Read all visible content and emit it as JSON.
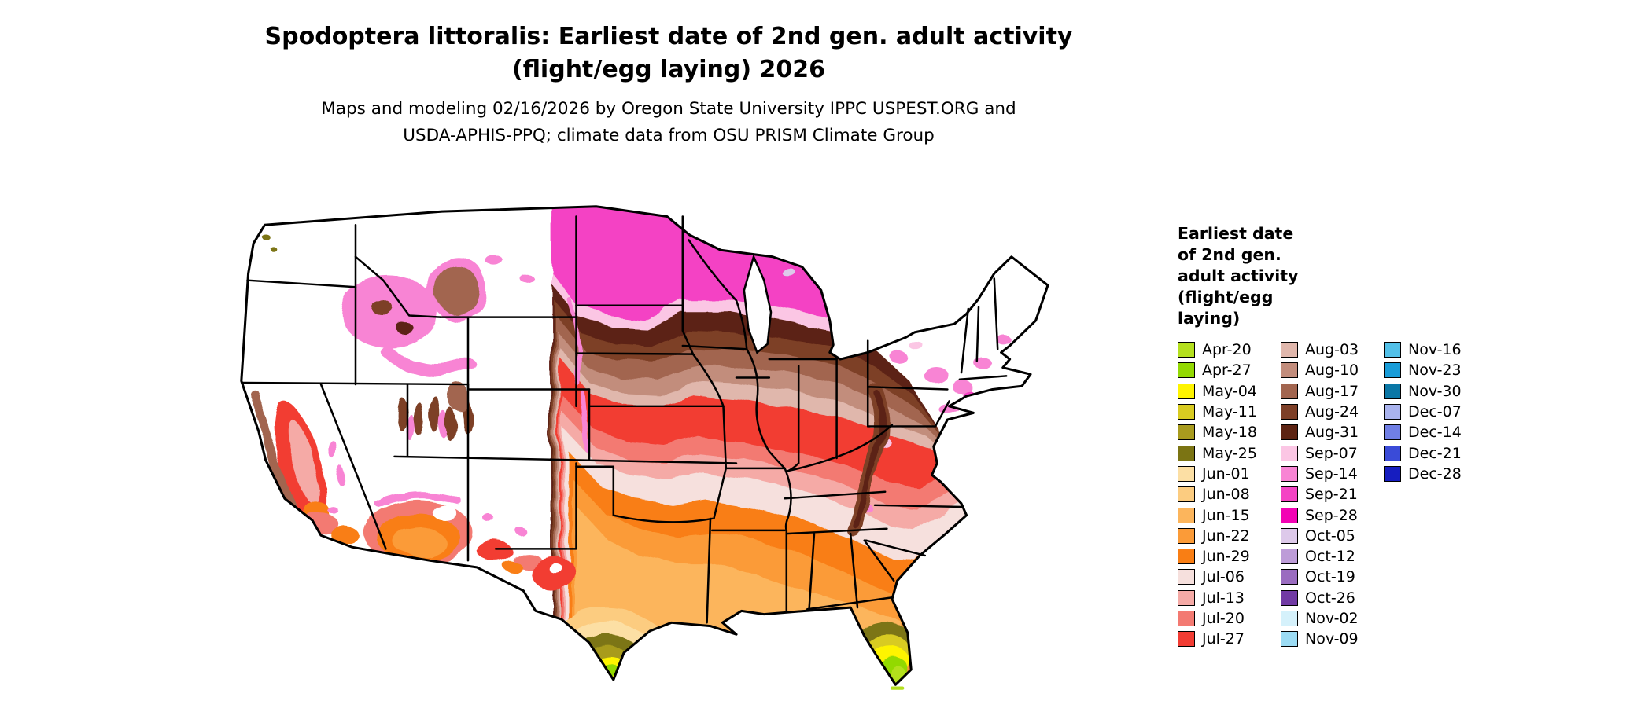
{
  "title": {
    "line1": "Spodoptera littoralis: Earliest date of 2nd gen. adult activity",
    "line2": "(flight/egg laying) 2026"
  },
  "subtitle": {
    "line1": "Maps and modeling 02/16/2026 by Oregon State University IPPC USPEST.ORG and",
    "line2": "USDA-APHIS-PPQ; climate data from OSU PRISM Climate Group"
  },
  "legend": {
    "title_lines": [
      "Earliest date",
      "of 2nd gen.",
      "adult activity",
      "(flight/egg",
      "laying)"
    ],
    "columns": [
      [
        {
          "label": "Apr-20",
          "color": "#b4e01e"
        },
        {
          "label": "Apr-27",
          "color": "#93d903"
        },
        {
          "label": "May-04",
          "color": "#fef400"
        },
        {
          "label": "May-11",
          "color": "#d8cb21"
        },
        {
          "label": "May-18",
          "color": "#a89b1e"
        },
        {
          "label": "May-25",
          "color": "#7b7413"
        },
        {
          "label": "Jun-01",
          "color": "#fcdfa4"
        },
        {
          "label": "Jun-08",
          "color": "#fccc80"
        },
        {
          "label": "Jun-15",
          "color": "#fcb55c"
        },
        {
          "label": "Jun-22",
          "color": "#fb9b38"
        },
        {
          "label": "Jun-29",
          "color": "#f97e14"
        },
        {
          "label": "Jul-06",
          "color": "#f6e0dd"
        },
        {
          "label": "Jul-13",
          "color": "#f5aaa6"
        },
        {
          "label": "Jul-20",
          "color": "#f37a72"
        },
        {
          "label": "Jul-27",
          "color": "#f23c33"
        }
      ],
      [
        {
          "label": "Aug-03",
          "color": "#e0b7ac"
        },
        {
          "label": "Aug-10",
          "color": "#c28d7c"
        },
        {
          "label": "Aug-17",
          "color": "#a2654f"
        },
        {
          "label": "Aug-24",
          "color": "#7d3f27"
        },
        {
          "label": "Aug-31",
          "color": "#5c2312"
        },
        {
          "label": "Sep-07",
          "color": "#fbc6e4"
        },
        {
          "label": "Sep-14",
          "color": "#f884d4"
        },
        {
          "label": "Sep-21",
          "color": "#f443c4"
        },
        {
          "label": "Sep-28",
          "color": "#f202b4"
        },
        {
          "label": "Oct-05",
          "color": "#ddc9ea"
        },
        {
          "label": "Oct-12",
          "color": "#bd9cd8"
        },
        {
          "label": "Oct-19",
          "color": "#9a6cc0"
        },
        {
          "label": "Oct-26",
          "color": "#713aa4"
        },
        {
          "label": "Nov-02",
          "color": "#d5f1fb"
        },
        {
          "label": "Nov-09",
          "color": "#9cdcf4"
        }
      ],
      [
        {
          "label": "Nov-16",
          "color": "#52c0e8"
        },
        {
          "label": "Nov-23",
          "color": "#189cd8"
        },
        {
          "label": "Nov-30",
          "color": "#0a77a6"
        },
        {
          "label": "Dec-07",
          "color": "#a9b3ee"
        },
        {
          "label": "Dec-14",
          "color": "#707fe5"
        },
        {
          "label": "Dec-21",
          "color": "#3a4bd8"
        },
        {
          "label": "Dec-28",
          "color": "#161dc0"
        }
      ]
    ]
  },
  "map": {
    "background": "#ffffff",
    "no_data_color": "#ffffff",
    "border_color": "#000000"
  }
}
